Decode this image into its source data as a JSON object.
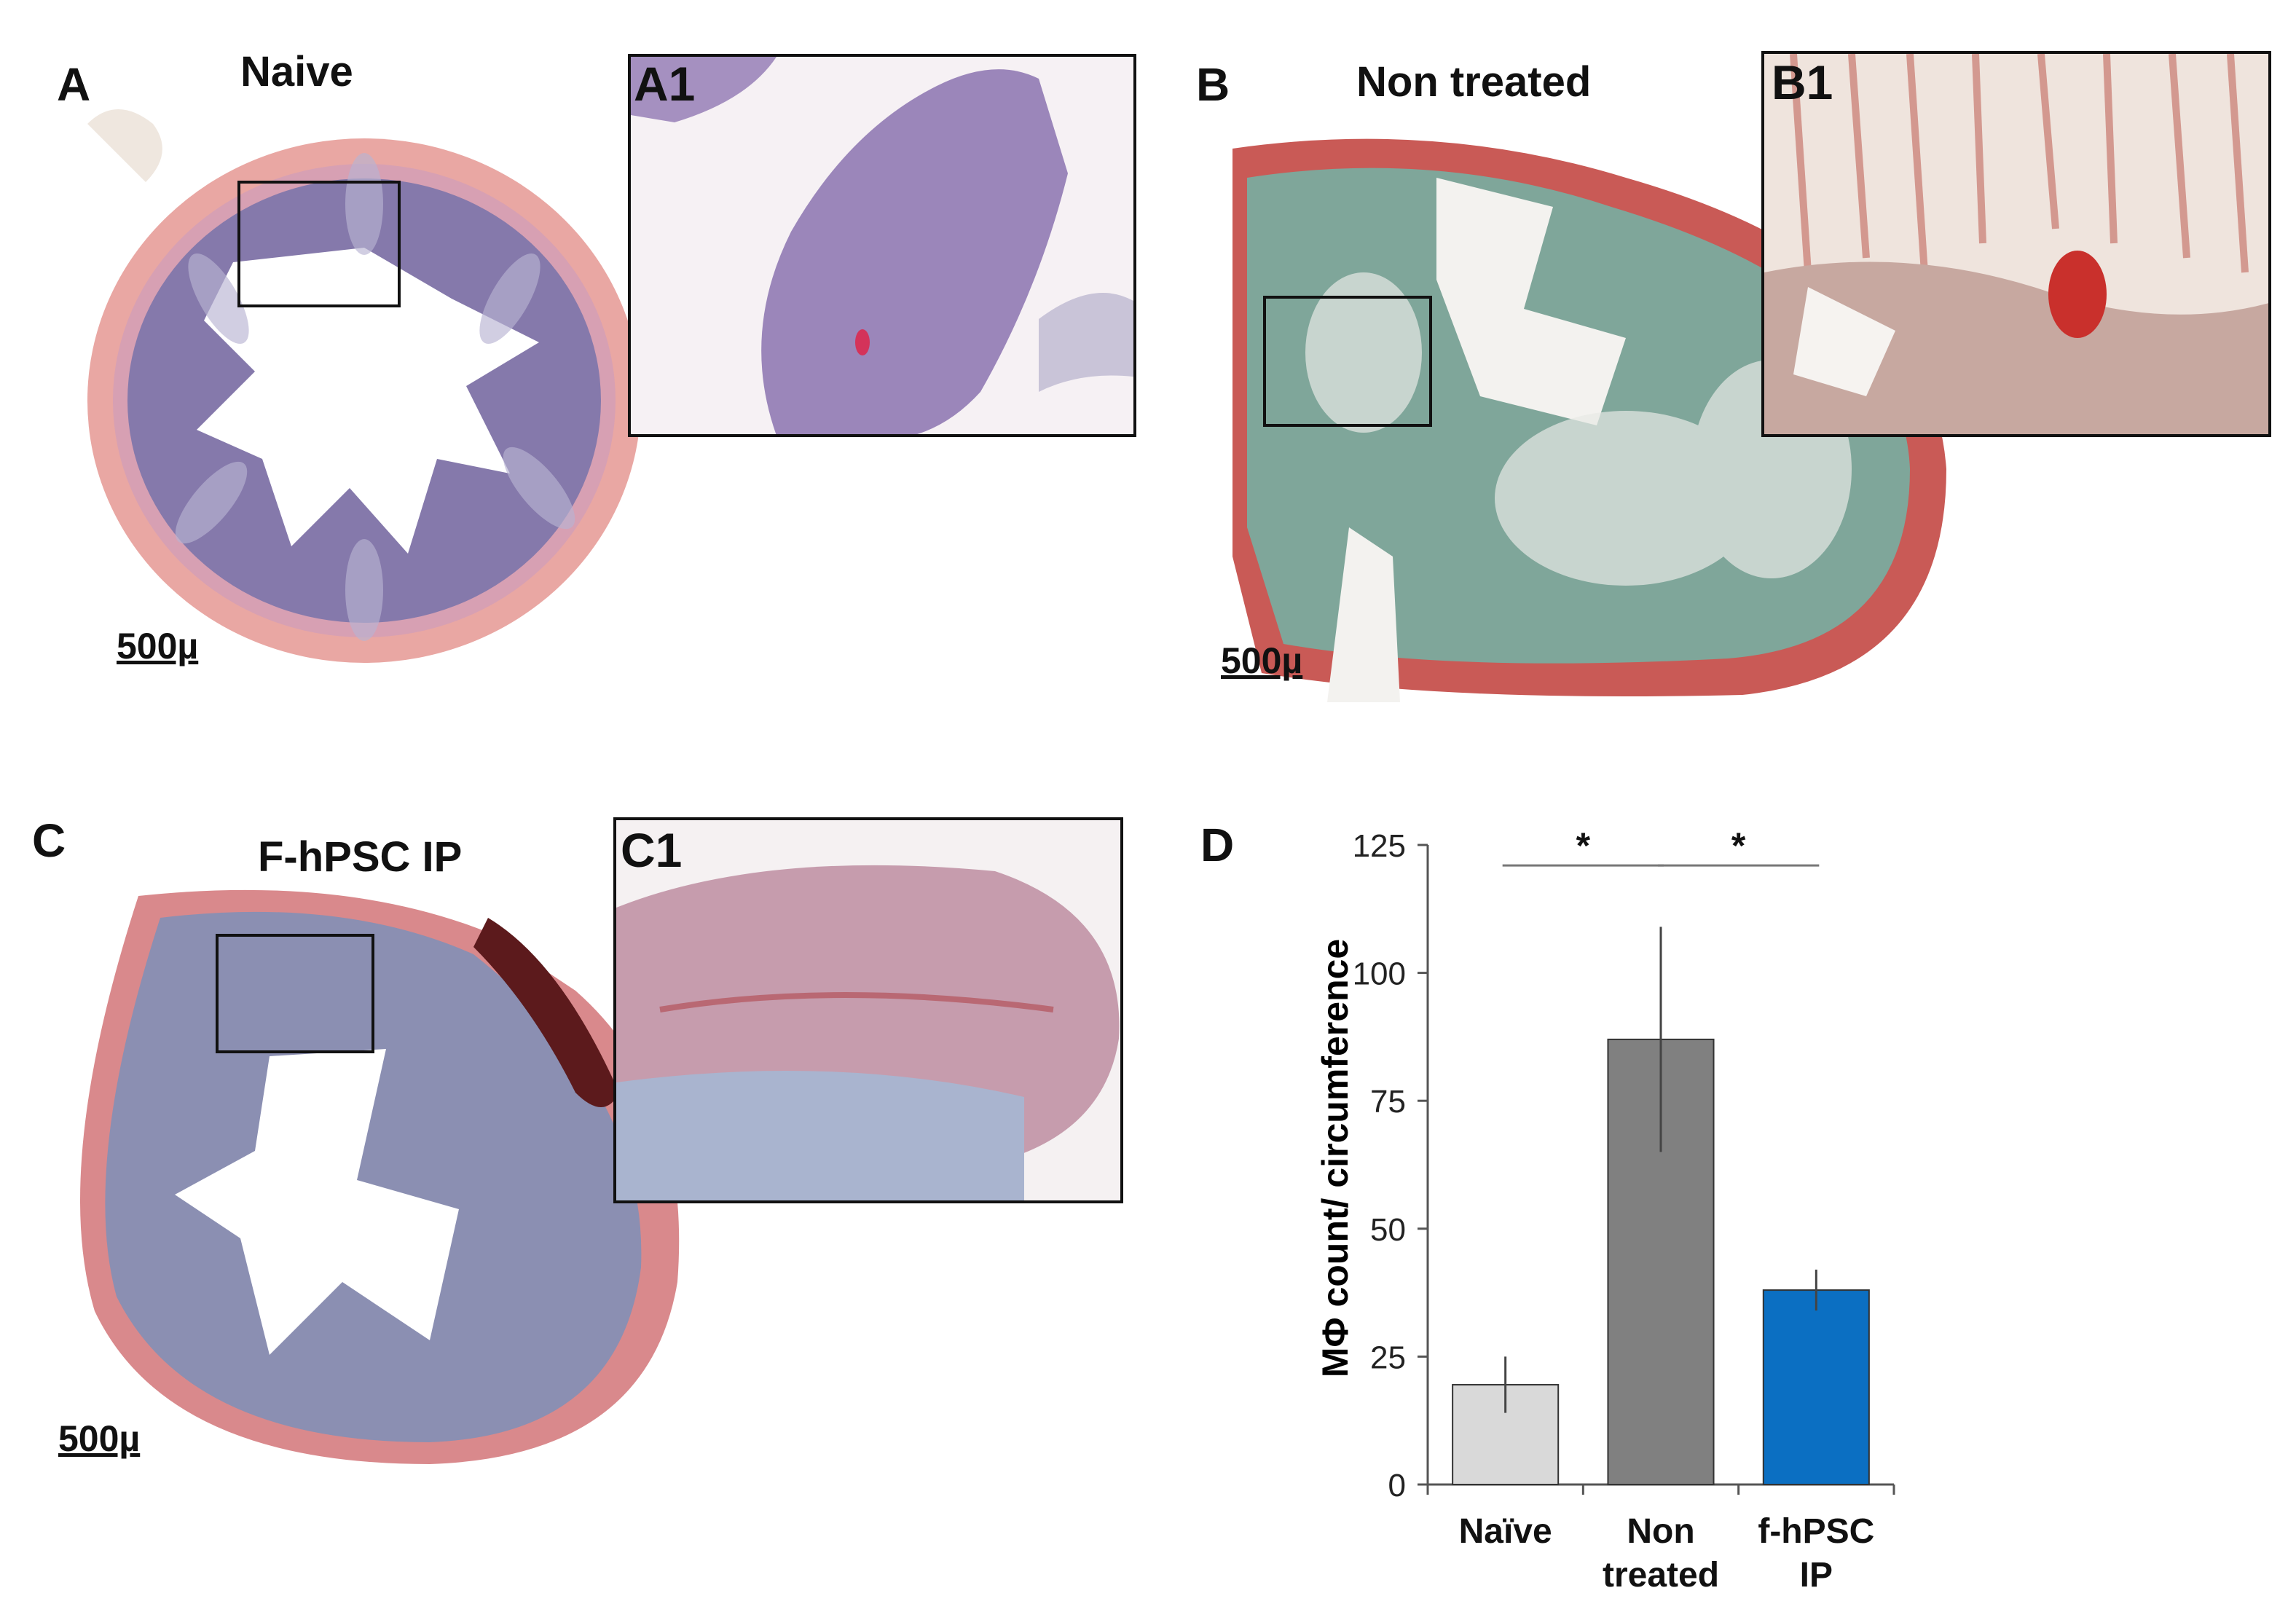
{
  "figure": {
    "panels": {
      "A": {
        "letter": "A",
        "title": "Naive",
        "inset_label": "A1",
        "scale_bar": "500µ"
      },
      "B": {
        "letter": "B",
        "title": "Non treated",
        "inset_label": "B1",
        "scale_bar": "500µ"
      },
      "C": {
        "letter": "C",
        "title": "F-hPSC IP",
        "inset_label": "C1",
        "scale_bar": "500µ"
      },
      "D": {
        "letter": "D"
      }
    },
    "colors": {
      "tissue_pink": "#e7a9a9",
      "tissue_purple": "#8a7fb0",
      "tissue_green": "#6fae9c",
      "bar_naive": "#d9d9d9",
      "bar_non_treated": "#808080",
      "bar_fhpsc": "#0b6fc2"
    }
  },
  "chart_data": {
    "type": "bar",
    "categories": [
      [
        "Naïve"
      ],
      [
        "Non",
        "treated"
      ],
      [
        "f-hPSC",
        "IP"
      ]
    ],
    "values": [
      19.5,
      87,
      38
    ],
    "errors": [
      5.5,
      22,
      4
    ],
    "ylabel": "MΦ count/ circumference",
    "ylim": [
      0,
      125
    ],
    "yticks": [
      0,
      25,
      50,
      75,
      100,
      125
    ],
    "grid": false,
    "significance": [
      {
        "from": 0,
        "to": 1,
        "label": "*"
      },
      {
        "from": 1,
        "to": 2,
        "label": "*"
      }
    ]
  }
}
